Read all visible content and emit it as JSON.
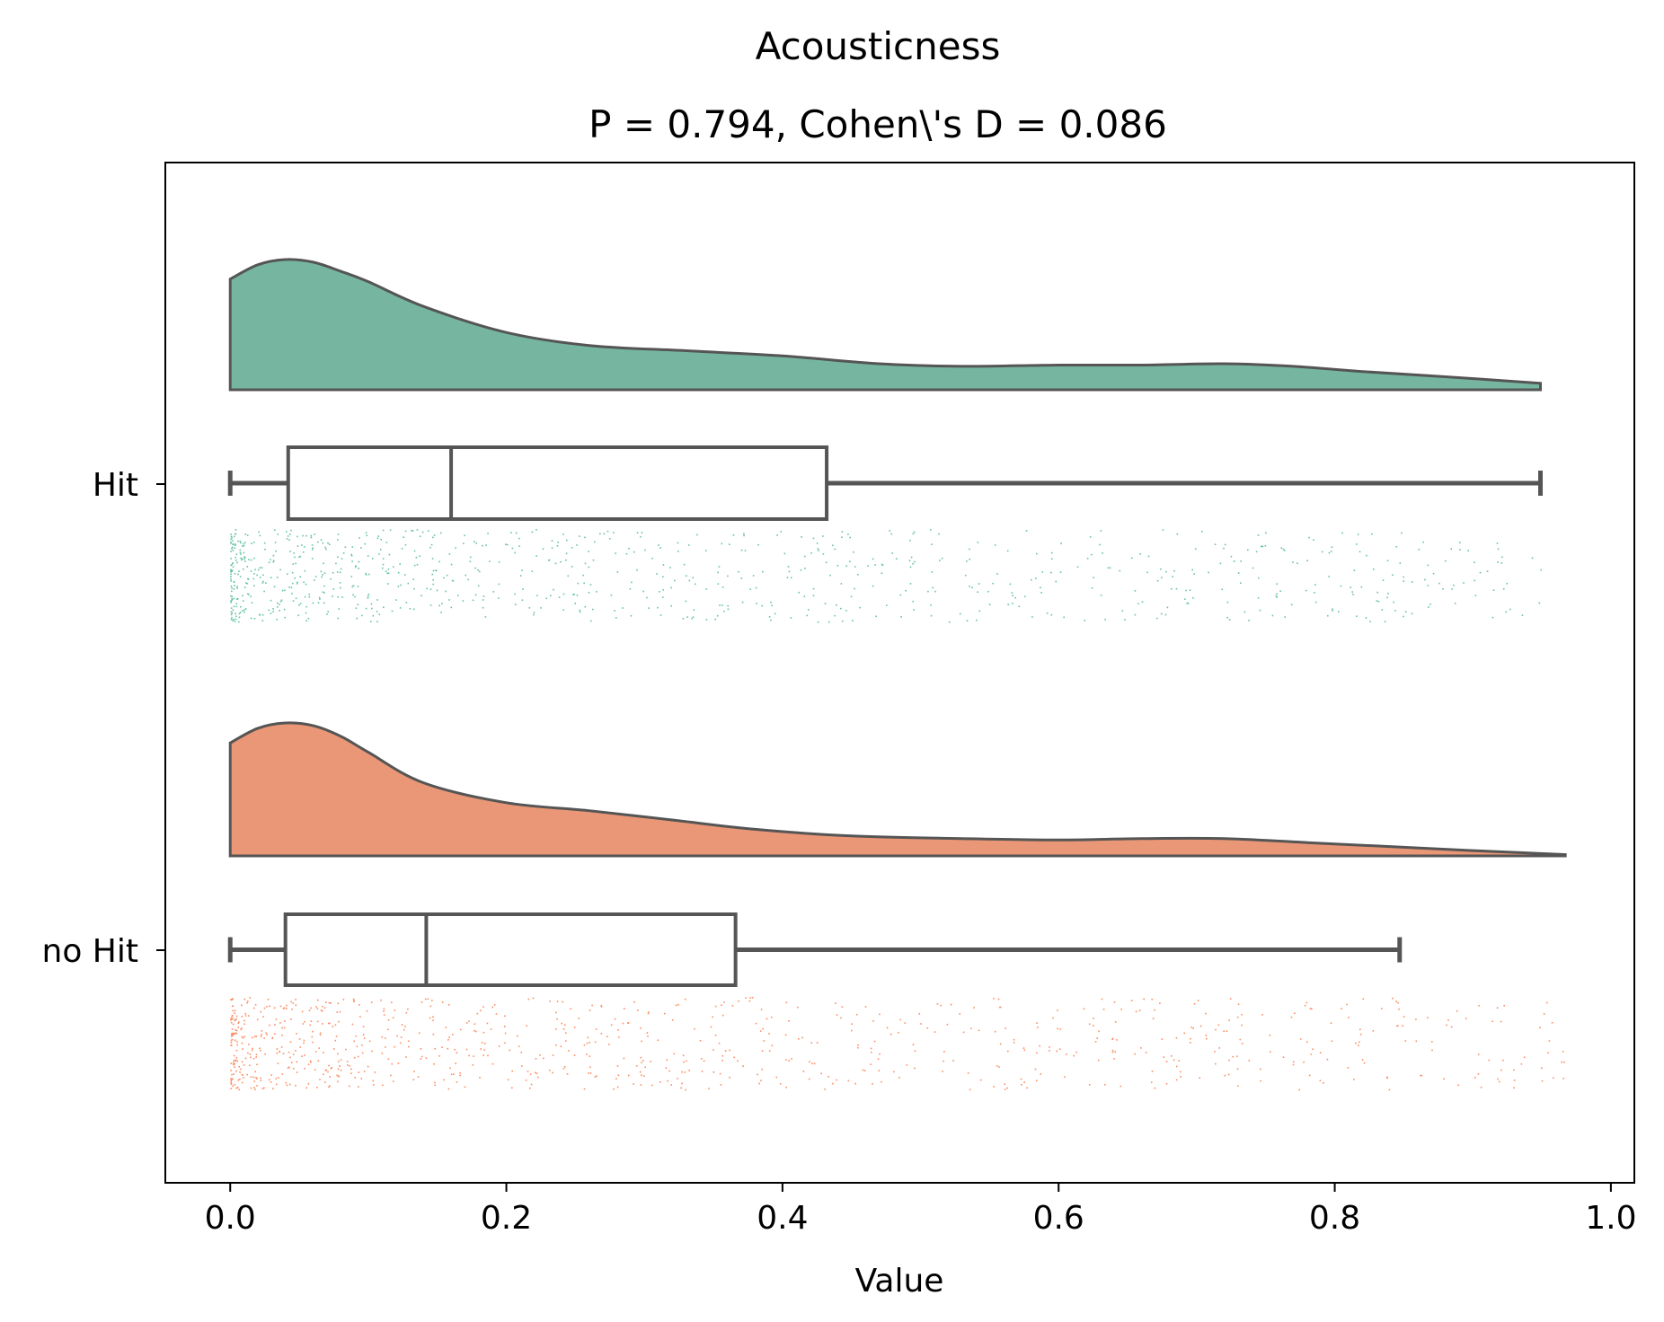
{
  "chart_data": {
    "type": "raincloud",
    "title": "Acousticness",
    "subtitle": "P = 0.794, Cohen\\'s D = 0.086",
    "xlabel": "Value",
    "ylabel": "",
    "xlim": [
      -0.047,
      1.017
    ],
    "xticks": [
      0.0,
      0.2,
      0.4,
      0.6,
      0.8,
      1.0
    ],
    "xtick_labels": [
      "0.0",
      "0.2",
      "0.4",
      "0.6",
      "0.8",
      "1.0"
    ],
    "categories": [
      "Hit",
      "no Hit"
    ],
    "grid": false,
    "legend": "none",
    "series": [
      {
        "category": "Hit",
        "color": "#66c2a5",
        "fill": "#76b6a1",
        "box": {
          "whisker_low": 0.0,
          "q1": 0.042,
          "median": 0.16,
          "q3": 0.432,
          "whisker_high": 0.949
        },
        "density": {
          "x": [
            0.0,
            0.02,
            0.04,
            0.06,
            0.08,
            0.1,
            0.14,
            0.2,
            0.26,
            0.33,
            0.4,
            0.47,
            0.53,
            0.6,
            0.66,
            0.72,
            0.77,
            0.82,
            0.88,
            0.949
          ],
          "y": [
            0.85,
            0.96,
            1.0,
            0.98,
            0.91,
            0.83,
            0.64,
            0.44,
            0.34,
            0.3,
            0.26,
            0.2,
            0.18,
            0.19,
            0.19,
            0.2,
            0.18,
            0.14,
            0.1,
            0.05
          ]
        }
      },
      {
        "category": "no Hit",
        "color": "#fc8d62",
        "fill": "#e99776",
        "box": {
          "whisker_low": 0.0,
          "q1": 0.04,
          "median": 0.142,
          "q3": 0.366,
          "whisker_high": 0.847
        },
        "density": {
          "x": [
            0.0,
            0.02,
            0.04,
            0.06,
            0.08,
            0.1,
            0.14,
            0.2,
            0.26,
            0.32,
            0.38,
            0.45,
            0.53,
            0.6,
            0.66,
            0.72,
            0.78,
            0.84,
            0.9,
            0.967
          ],
          "y": [
            0.85,
            0.96,
            1.0,
            0.98,
            0.9,
            0.78,
            0.55,
            0.4,
            0.34,
            0.27,
            0.2,
            0.15,
            0.13,
            0.12,
            0.13,
            0.13,
            0.1,
            0.07,
            0.04,
            0.01
          ]
        }
      }
    ]
  }
}
